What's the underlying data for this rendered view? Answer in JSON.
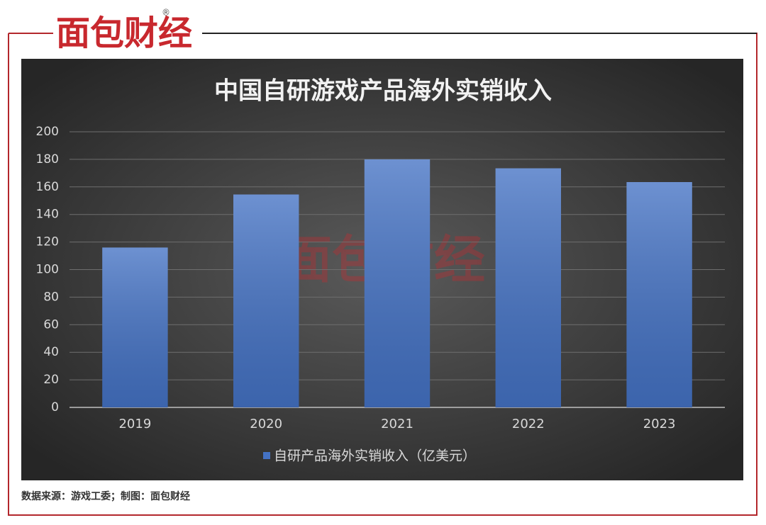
{
  "logo": {
    "text": "面包财经",
    "mark": "®"
  },
  "footer": "数据来源：游戏工委；制图：面包财经",
  "chart_data": {
    "type": "bar",
    "title": "中国自研游戏产品海外实销收入",
    "watermark": "面包财经",
    "categories": [
      "2019",
      "2020",
      "2021",
      "2022",
      "2023"
    ],
    "series": [
      {
        "name": "自研产品海外实销收入（亿美元）",
        "color": "#4472c4",
        "values": [
          116,
          154.5,
          180,
          173.5,
          163.5
        ]
      }
    ],
    "ylim": [
      0,
      200
    ],
    "yticks": [
      0,
      20,
      40,
      60,
      80,
      100,
      120,
      140,
      160,
      180,
      200
    ],
    "grid": true,
    "legend": "bottom"
  }
}
